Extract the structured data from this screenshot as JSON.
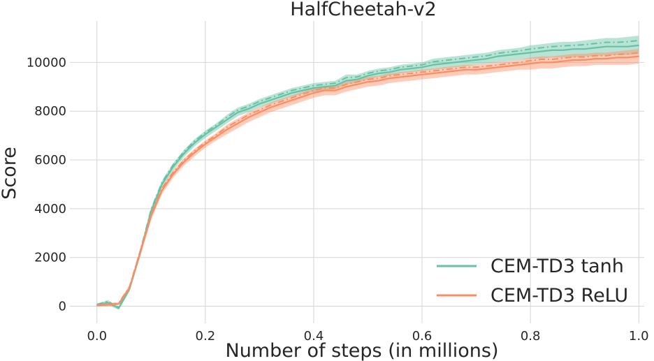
{
  "chart_data": {
    "type": "line",
    "title": "HalfCheetah-v2",
    "xlabel": "Number of steps (in millions)",
    "ylabel": "Score",
    "xlim": [
      -0.05,
      1.01
    ],
    "ylim": [
      -700,
      11700
    ],
    "xticks": [
      0.0,
      0.2,
      0.4,
      0.6,
      0.8,
      1.0
    ],
    "xtick_labels": [
      "0.0",
      "0.2",
      "0.4",
      "0.6",
      "0.8",
      "1.0"
    ],
    "yticks": [
      0,
      2000,
      4000,
      6000,
      8000,
      10000
    ],
    "ytick_labels": [
      "0",
      "2000",
      "4000",
      "6000",
      "8000",
      "10000"
    ],
    "grid": true,
    "legend_position": "bottom-right",
    "x": [
      0.0,
      0.02,
      0.04,
      0.06,
      0.08,
      0.1,
      0.12,
      0.14,
      0.16,
      0.18,
      0.2,
      0.22,
      0.24,
      0.26,
      0.28,
      0.3,
      0.32,
      0.34,
      0.36,
      0.38,
      0.4,
      0.42,
      0.44,
      0.46,
      0.48,
      0.5,
      0.52,
      0.54,
      0.56,
      0.58,
      0.6,
      0.62,
      0.64,
      0.66,
      0.68,
      0.7,
      0.72,
      0.74,
      0.76,
      0.78,
      0.8,
      0.82,
      0.84,
      0.86,
      0.88,
      0.9,
      0.92,
      0.94,
      0.96,
      0.98,
      1.0
    ],
    "series": [
      {
        "name": "CEM-TD3 tanh",
        "color": "#66c2a5",
        "values": [
          50,
          150,
          -80,
          700,
          2200,
          3900,
          5000,
          5700,
          6250,
          6700,
          7050,
          7350,
          7650,
          7950,
          8100,
          8300,
          8450,
          8600,
          8750,
          8850,
          8950,
          9000,
          9050,
          9250,
          9300,
          9450,
          9550,
          9600,
          9700,
          9750,
          9800,
          9900,
          9950,
          10000,
          10050,
          10100,
          10150,
          10250,
          10300,
          10350,
          10400,
          10450,
          10500,
          10500,
          10550,
          10550,
          10600,
          10650,
          10650,
          10650,
          10700
        ],
        "lower": [
          0,
          50,
          -150,
          600,
          2050,
          3750,
          4850,
          5550,
          6100,
          6550,
          6900,
          7200,
          7500,
          7800,
          7950,
          8150,
          8300,
          8450,
          8600,
          8700,
          8800,
          8850,
          8900,
          9100,
          9150,
          9300,
          9400,
          9450,
          9550,
          9600,
          9650,
          9700,
          9750,
          9800,
          9850,
          9900,
          9950,
          10000,
          10050,
          10100,
          10150,
          10150,
          10200,
          10200,
          10200,
          10250,
          10250,
          10300,
          10300,
          10300,
          10350
        ],
        "upper": [
          100,
          250,
          0,
          800,
          2350,
          4050,
          5150,
          5850,
          6400,
          6850,
          7200,
          7500,
          7850,
          8150,
          8300,
          8500,
          8650,
          8800,
          8950,
          9050,
          9150,
          9200,
          9250,
          9500,
          9500,
          9650,
          9750,
          9800,
          9900,
          9950,
          10000,
          10150,
          10200,
          10250,
          10300,
          10350,
          10400,
          10500,
          10550,
          10600,
          10700,
          10750,
          10800,
          10850,
          10850,
          10900,
          10950,
          11000,
          11000,
          11050,
          11100
        ]
      },
      {
        "name": "CEM-TD3 ReLU",
        "color": "#fc8d62",
        "values": [
          30,
          60,
          100,
          750,
          2200,
          3700,
          4750,
          5400,
          5900,
          6300,
          6650,
          6950,
          7250,
          7500,
          7750,
          7950,
          8150,
          8300,
          8450,
          8600,
          8750,
          8850,
          8850,
          9000,
          9100,
          9200,
          9250,
          9350,
          9400,
          9450,
          9500,
          9550,
          9600,
          9650,
          9700,
          9700,
          9750,
          9800,
          9850,
          9900,
          9950,
          10000,
          10000,
          10050,
          10100,
          10100,
          10150,
          10150,
          10200,
          10200,
          10250
        ],
        "lower": [
          0,
          0,
          50,
          650,
          2050,
          3550,
          4600,
          5250,
          5750,
          6150,
          6500,
          6800,
          7050,
          7300,
          7550,
          7750,
          7950,
          8100,
          8250,
          8400,
          8550,
          8650,
          8650,
          8800,
          8900,
          9000,
          9050,
          9150,
          9200,
          9250,
          9300,
          9350,
          9400,
          9450,
          9500,
          9500,
          9550,
          9600,
          9650,
          9700,
          9700,
          9750,
          9750,
          9800,
          9850,
          9850,
          9900,
          9900,
          9900,
          9900,
          9950
        ],
        "upper": [
          60,
          120,
          150,
          850,
          2350,
          3850,
          4900,
          5550,
          6050,
          6450,
          6800,
          7100,
          7450,
          7700,
          7950,
          8150,
          8350,
          8500,
          8650,
          8800,
          8950,
          9050,
          9050,
          9200,
          9300,
          9400,
          9450,
          9550,
          9600,
          9650,
          9700,
          9750,
          9800,
          9850,
          9900,
          9900,
          9950,
          10000,
          10050,
          10100,
          10200,
          10250,
          10250,
          10300,
          10350,
          10350,
          10400,
          10400,
          10450,
          10500,
          10550
        ]
      }
    ]
  }
}
